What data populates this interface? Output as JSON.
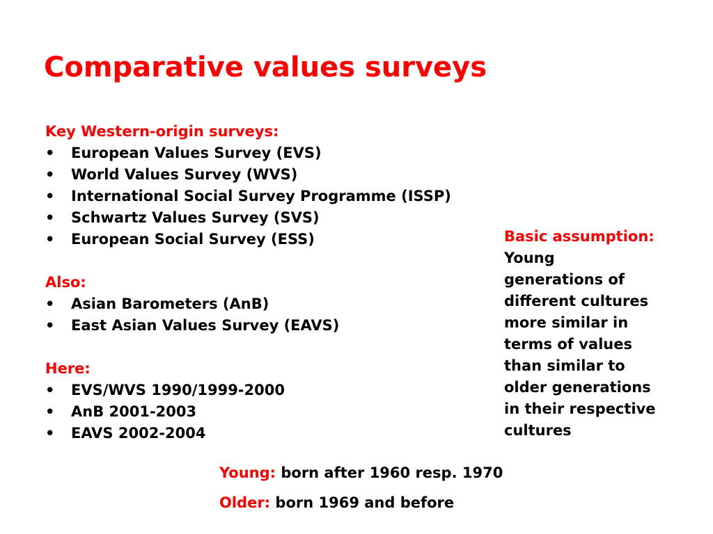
{
  "title": "Comparative values surveys",
  "sections": [
    {
      "heading": "Key Western-origin surveys:",
      "items": [
        "European Values Survey (EVS)",
        "World Values Survey (WVS)",
        "International Social Survey Programme (ISSP)",
        "Schwartz Values Survey (SVS)",
        "European Social Survey (ESS)"
      ]
    },
    {
      "heading": "Also:",
      "items": [
        "Asian Barometers (AnB)",
        "East Asian Values Survey (EAVS)"
      ]
    },
    {
      "heading": "Here:",
      "items": [
        "EVS/WVS 1990/1999-2000",
        "AnB 2001-2003",
        "EAVS 2002-2004"
      ]
    }
  ],
  "bullet": "•",
  "assumption": {
    "label": "Basic assumption",
    "colon": ":",
    "lines": [
      "Young",
      "generations of",
      "different cultures",
      "more similar in",
      "terms of values",
      "than similar to",
      "older generations",
      "in their respective",
      "cultures"
    ]
  },
  "definitions": [
    {
      "label": "Young:",
      "text": "born after 1960 resp. 1970"
    },
    {
      "label": "Older:",
      "text": "born 1969 and before"
    }
  ]
}
